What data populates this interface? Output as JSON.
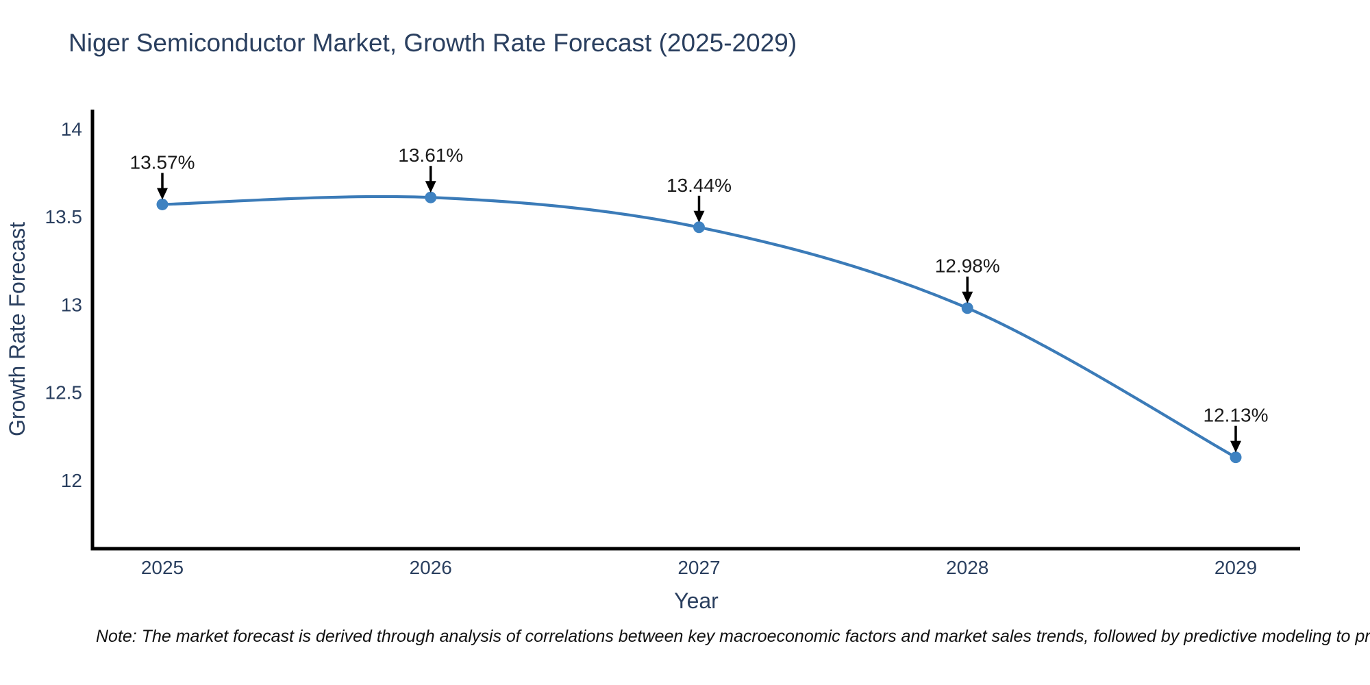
{
  "title": "Niger Semiconductor Market, Growth Rate Forecast (2025-2029)",
  "note": "Note: The market forecast is derived through analysis of correlations between key macroeconomic factors and market sales trends, followed by predictive modeling to project future sal",
  "chart_data": {
    "type": "line",
    "title": "Niger Semiconductor Market, Growth Rate Forecast (2025-2029)",
    "xlabel": "Year",
    "ylabel": "Growth Rate Forecast",
    "x": [
      2025,
      2026,
      2027,
      2028,
      2029
    ],
    "series": [
      {
        "name": "Growth Rate Forecast",
        "values": [
          13.57,
          13.61,
          13.44,
          12.98,
          12.13
        ]
      }
    ],
    "point_labels": [
      "13.57%",
      "13.61%",
      "13.44%",
      "12.98%",
      "12.13%"
    ],
    "yticks": [
      14,
      13.5,
      13,
      12.5,
      12
    ],
    "ylim": [
      11.61,
      14.11
    ],
    "line_shape": "spline",
    "grid": false,
    "legend": "none",
    "colors": {
      "line": "#3b7bb8",
      "marker": "#3f82c1",
      "arrow": "#000000",
      "axis_line": "#000000",
      "axis_text": "#2a3f5f",
      "annotation_text": "#1a1a1a"
    }
  }
}
